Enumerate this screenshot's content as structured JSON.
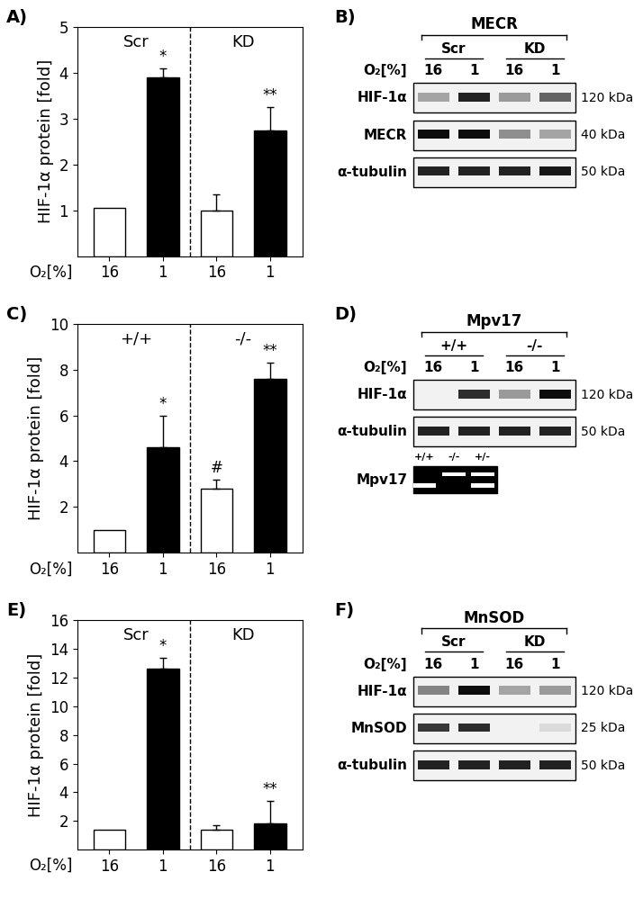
{
  "chart_data": [
    {
      "type": "bar",
      "panel": "A)",
      "groups": [
        "Scr",
        "KD"
      ],
      "categories": [
        "16",
        "1",
        "16",
        "1"
      ],
      "values": [
        1.05,
        3.9,
        1.0,
        2.75
      ],
      "errors": [
        null,
        0.2,
        0.35,
        0.5
      ],
      "annotations": [
        null,
        "*",
        null,
        "**"
      ],
      "colors": [
        "#ffffff",
        "#000000",
        "#ffffff",
        "#000000"
      ],
      "y_label": "HIF-1α protein [fold]",
      "x_label": "O₂[%]",
      "ylim": [
        0,
        5
      ],
      "yticks": [
        1,
        2,
        3,
        4,
        5
      ]
    },
    {
      "type": "bar",
      "panel": "C)",
      "groups": [
        "+/+",
        "-/-"
      ],
      "categories": [
        "16",
        "1",
        "16",
        "1"
      ],
      "values": [
        1.0,
        4.6,
        2.8,
        7.6
      ],
      "errors": [
        null,
        1.4,
        0.4,
        0.7
      ],
      "annotations": [
        null,
        "*",
        "#",
        "**"
      ],
      "colors": [
        "#ffffff",
        "#000000",
        "#ffffff",
        "#000000"
      ],
      "y_label": "HIF-1α protein [fold]",
      "x_label": "O₂[%]",
      "ylim": [
        0,
        10
      ],
      "yticks": [
        2,
        4,
        6,
        8,
        10
      ]
    },
    {
      "type": "bar",
      "panel": "E)",
      "groups": [
        "Scr",
        "KD"
      ],
      "categories": [
        "16",
        "1",
        "16",
        "1"
      ],
      "values": [
        1.4,
        12.6,
        1.4,
        1.8
      ],
      "errors": [
        null,
        0.8,
        0.3,
        1.6
      ],
      "annotations": [
        null,
        "*",
        null,
        "**"
      ],
      "colors": [
        "#ffffff",
        "#000000",
        "#ffffff",
        "#000000"
      ],
      "y_label": "HIF-1α protein [fold]",
      "x_label": "O₂[%]",
      "ylim": [
        0,
        16
      ],
      "yticks": [
        2,
        4,
        6,
        8,
        10,
        12,
        14,
        16
      ]
    }
  ],
  "blots": [
    {
      "panel": "B)",
      "title": "MECR",
      "groups": [
        "Scr",
        "KD"
      ],
      "x_label": "O₂[%]",
      "lanes": [
        "16",
        "1",
        "16",
        "1"
      ],
      "rows": [
        {
          "label": "HIF-1α",
          "size": "120 kDa",
          "intensity": [
            0.3,
            0.9,
            0.35,
            0.6
          ]
        },
        {
          "label": "MECR",
          "size": "40 kDa",
          "intensity": [
            1.0,
            1.0,
            0.4,
            0.3
          ]
        },
        {
          "label": "α-tubulin",
          "size": "50 kDa",
          "intensity": [
            0.9,
            0.9,
            0.9,
            0.95
          ]
        }
      ]
    },
    {
      "panel": "D)",
      "title": "Mpv17",
      "groups": [
        "+/+",
        "-/-"
      ],
      "x_label": "O₂[%]",
      "lanes": [
        "16",
        "1",
        "16",
        "1"
      ],
      "rows": [
        {
          "label": "HIF-1α",
          "size": "120 kDa",
          "intensity": [
            0.0,
            0.85,
            0.35,
            1.0
          ]
        },
        {
          "label": "α-tubulin",
          "size": "50 kDa",
          "intensity": [
            0.9,
            0.9,
            0.9,
            0.9
          ]
        }
      ],
      "gel": {
        "label": "Mpv17",
        "lanes": [
          "+/+",
          "-/-",
          "+/-"
        ],
        "bands": [
          [
            0,
            1
          ],
          [
            1,
            0
          ],
          [
            1,
            1
          ]
        ]
      }
    },
    {
      "panel": "F)",
      "title": "MnSOD",
      "groups": [
        "Scr",
        "KD"
      ],
      "x_label": "O₂[%]",
      "lanes": [
        "16",
        "1",
        "16",
        "1"
      ],
      "rows": [
        {
          "label": "HIF-1α",
          "size": "120 kDa",
          "intensity": [
            0.45,
            1.0,
            0.3,
            0.35
          ]
        },
        {
          "label": "MnSOD",
          "size": "25 kDa",
          "intensity": [
            0.8,
            0.85,
            0.0,
            0.05
          ]
        },
        {
          "label": "α-tubulin",
          "size": "50 kDa",
          "intensity": [
            0.9,
            0.9,
            0.9,
            0.9
          ]
        }
      ]
    }
  ]
}
